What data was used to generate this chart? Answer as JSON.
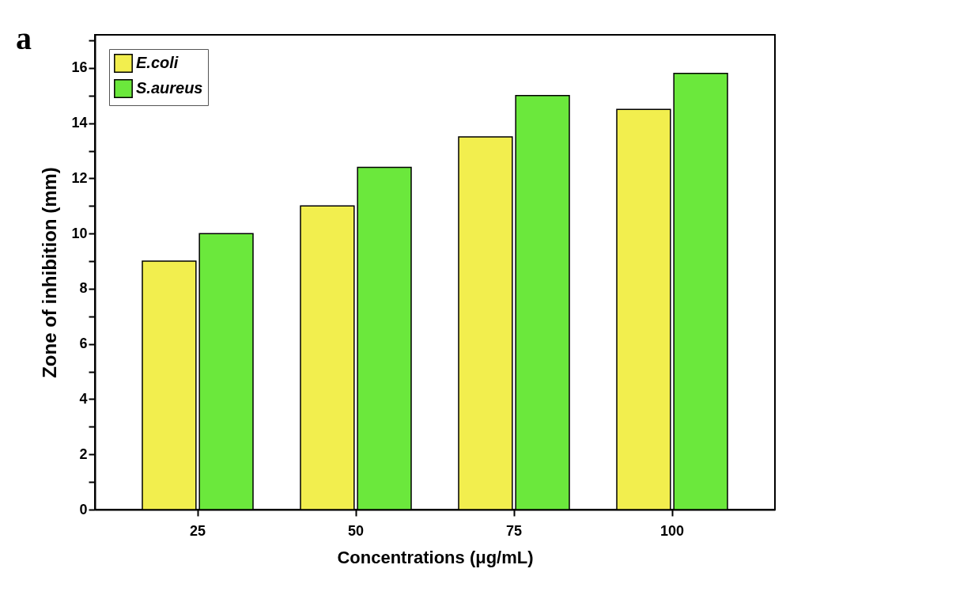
{
  "chart_data": {
    "type": "bar",
    "xlabel": "Concentrations (μg/mL)",
    "ylabel": "Zone of inhibition (mm)",
    "annotations": [
      "a"
    ],
    "categories": [
      "25",
      "50",
      "75",
      "100"
    ],
    "series": [
      {
        "name": "E.coli",
        "color": "#f2ee4e",
        "values": [
          9,
          11,
          13.5,
          14.5
        ]
      },
      {
        "name": "S.aureus",
        "color": "#6be83c",
        "values": [
          10,
          12.4,
          15,
          15.8
        ]
      }
    ],
    "ylim": [
      0,
      17.2
    ],
    "yticks": [
      0,
      {
        "value": 1,
        "label": null
      },
      2,
      {
        "value": 3,
        "label": null
      },
      4,
      {
        "value": 5,
        "label": null
      },
      6,
      {
        "value": 7,
        "label": null
      },
      8,
      {
        "value": 9,
        "label": null
      },
      10,
      {
        "value": 11,
        "label": null
      },
      12,
      {
        "value": 13,
        "label": null
      },
      14,
      {
        "value": 15,
        "label": null
      },
      16,
      {
        "value": 17,
        "label": null
      }
    ],
    "grid": false,
    "legend": "top left"
  }
}
